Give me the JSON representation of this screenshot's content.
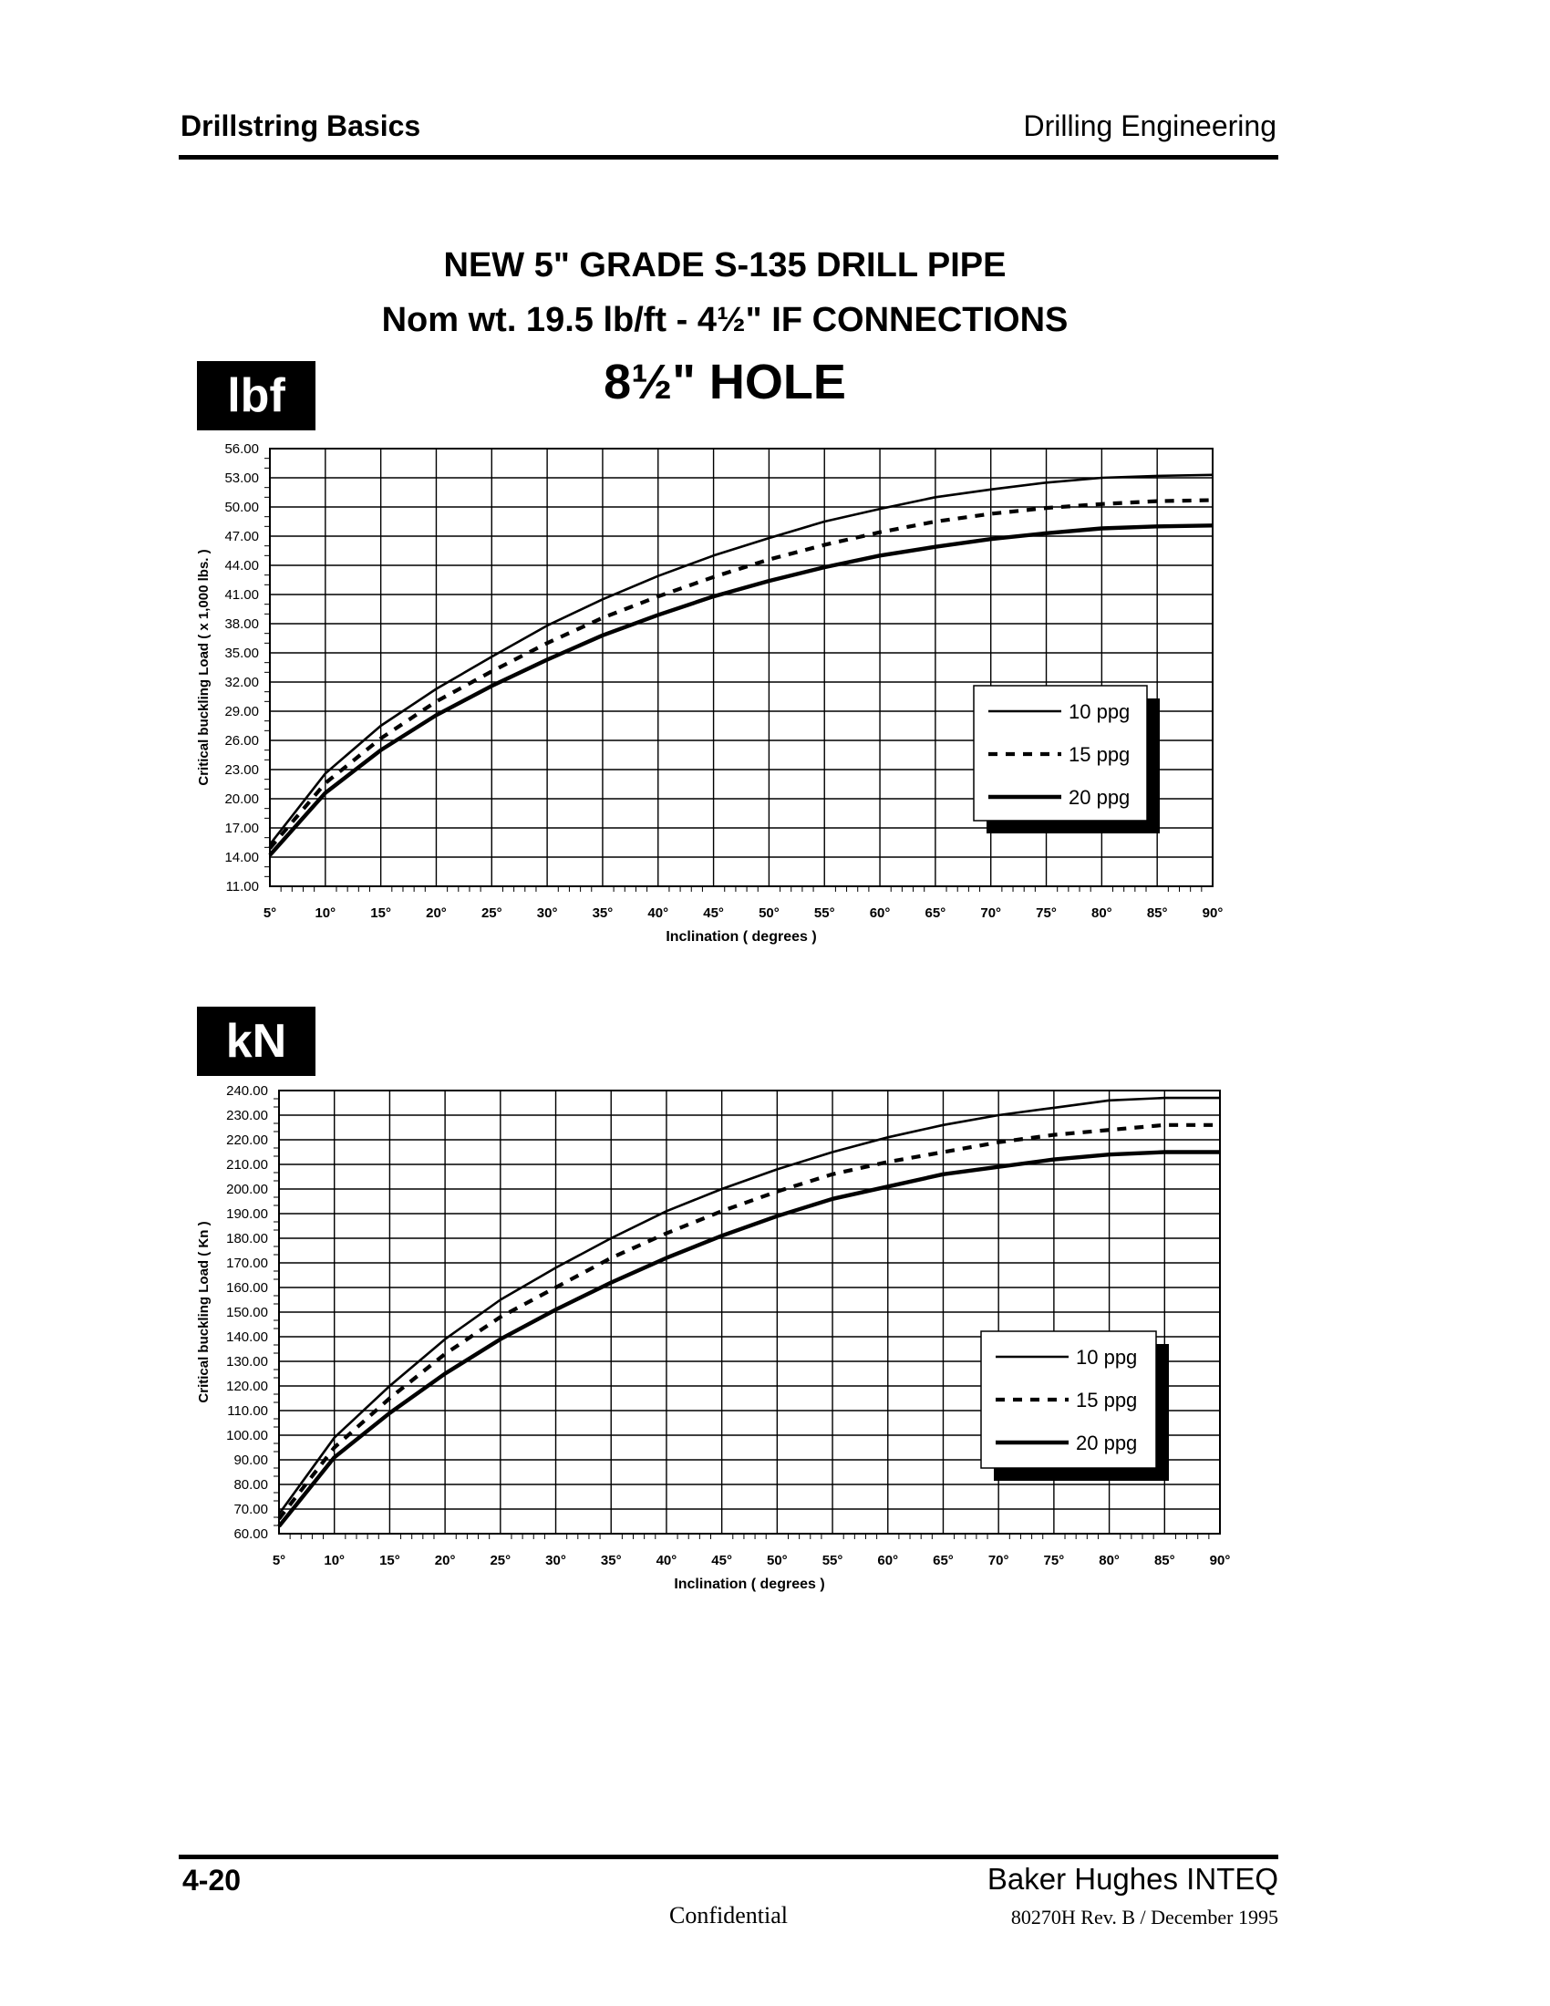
{
  "header": {
    "left": "Drillstring Basics",
    "right": "Drilling Engineering"
  },
  "title": {
    "line1": "NEW 5\" GRADE  S-135  DRILL PIPE",
    "line2": "Nom wt. 19.5 lb/ft  -   4½\" IF CONNECTIONS",
    "line3": "8½\" HOLE"
  },
  "footer": {
    "page": "4-20",
    "company": "Baker Hughes INTEQ",
    "confidential": "Confidential",
    "docref": "80270H Rev. B / December 1995"
  },
  "colors": {
    "ink": "#000000",
    "grid": "#000000",
    "background": "#ffffff"
  },
  "chart_data": [
    {
      "type": "line",
      "unit_label": "lbf",
      "xlabel": "Inclination  ( degrees )",
      "ylabel": "Critical buckling Load  ( x 1,000 lbs. )",
      "xlim": [
        5,
        90
      ],
      "ylim": [
        11,
        56
      ],
      "x_ticks": [
        "5°",
        "10°",
        "15°",
        "20°",
        "25°",
        "30°",
        "35°",
        "40°",
        "45°",
        "50°",
        "55°",
        "60°",
        "65°",
        "70°",
        "75°",
        "80°",
        "85°",
        "90°"
      ],
      "y_ticks": [
        "11.00",
        "14.00",
        "17.00",
        "20.00",
        "23.00",
        "26.00",
        "29.00",
        "32.00",
        "35.00",
        "38.00",
        "41.00",
        "44.00",
        "47.00",
        "50.00",
        "53.00",
        "56.00"
      ],
      "grid": true,
      "legend_position": "right, lower-middle",
      "x": [
        5,
        10,
        15,
        20,
        25,
        30,
        35,
        40,
        45,
        50,
        55,
        60,
        65,
        70,
        75,
        80,
        85,
        90
      ],
      "series": [
        {
          "name": "10 ppg",
          "style": "solid-thin",
          "values": [
            15.3,
            22.6,
            27.5,
            31.3,
            34.6,
            37.8,
            40.5,
            42.9,
            45.0,
            46.8,
            48.5,
            49.8,
            51.0,
            51.8,
            52.5,
            53.0,
            53.2,
            53.3
          ]
        },
        {
          "name": "15 ppg",
          "style": "dashed",
          "values": [
            14.9,
            21.6,
            26.2,
            30.0,
            33.1,
            36.0,
            38.6,
            40.8,
            42.8,
            44.6,
            46.1,
            47.4,
            48.5,
            49.3,
            49.9,
            50.3,
            50.6,
            50.7
          ]
        },
        {
          "name": "20 ppg",
          "style": "solid-thick",
          "values": [
            14.2,
            20.6,
            25.0,
            28.6,
            31.6,
            34.3,
            36.8,
            38.9,
            40.8,
            42.4,
            43.8,
            45.0,
            45.9,
            46.7,
            47.3,
            47.8,
            48.0,
            48.1
          ]
        }
      ]
    },
    {
      "type": "line",
      "unit_label": "kN",
      "xlabel": "Inclination  ( degrees )",
      "ylabel": "Critical buckling Load  ( Kn )",
      "xlim": [
        5,
        90
      ],
      "ylim": [
        60,
        240
      ],
      "x_ticks": [
        "5°",
        "10°",
        "15°",
        "20°",
        "25°",
        "30°",
        "35°",
        "40°",
        "45°",
        "50°",
        "55°",
        "60°",
        "65°",
        "70°",
        "75°",
        "80°",
        "85°",
        "90°"
      ],
      "y_ticks": [
        "60.00",
        "70.00",
        "80.00",
        "90.00",
        "100.00",
        "110.00",
        "120.00",
        "130.00",
        "140.00",
        "150.00",
        "160.00",
        "170.00",
        "180.00",
        "190.00",
        "200.00",
        "210.00",
        "220.00",
        "230.00",
        "240.00"
      ],
      "grid": true,
      "legend_position": "right, lower-middle",
      "x": [
        5,
        10,
        15,
        20,
        25,
        30,
        35,
        40,
        45,
        50,
        55,
        60,
        65,
        70,
        75,
        80,
        85,
        90
      ],
      "series": [
        {
          "name": "10 ppg",
          "style": "solid-thin",
          "values": [
            68,
            99,
            120,
            139,
            155,
            168,
            180,
            191,
            200,
            208,
            215,
            221,
            226,
            230,
            233,
            236,
            237,
            237
          ]
        },
        {
          "name": "15 ppg",
          "style": "dashed",
          "values": [
            66,
            95,
            115,
            133,
            148,
            160,
            172,
            182,
            191,
            199,
            206,
            211,
            215,
            219,
            222,
            224,
            226,
            226
          ]
        },
        {
          "name": "20 ppg",
          "style": "solid-thick",
          "values": [
            63,
            91,
            109,
            125,
            139,
            151,
            162,
            172,
            181,
            189,
            196,
            201,
            206,
            209,
            212,
            214,
            215,
            215
          ]
        }
      ]
    }
  ]
}
